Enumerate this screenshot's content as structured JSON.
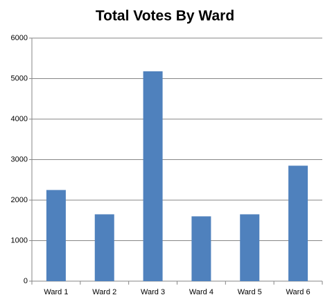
{
  "chart_data": {
    "type": "bar",
    "title": "Total Votes By Ward",
    "categories": [
      "Ward 1",
      "Ward 2",
      "Ward 3",
      "Ward 4",
      "Ward 5",
      "Ward 6"
    ],
    "values": [
      2250,
      1650,
      5180,
      1600,
      1650,
      2850
    ],
    "color": "#4f81bd",
    "ylim": [
      0,
      6000
    ],
    "yticks": [
      0,
      1000,
      2000,
      3000,
      4000,
      5000,
      6000
    ],
    "grid": true
  }
}
